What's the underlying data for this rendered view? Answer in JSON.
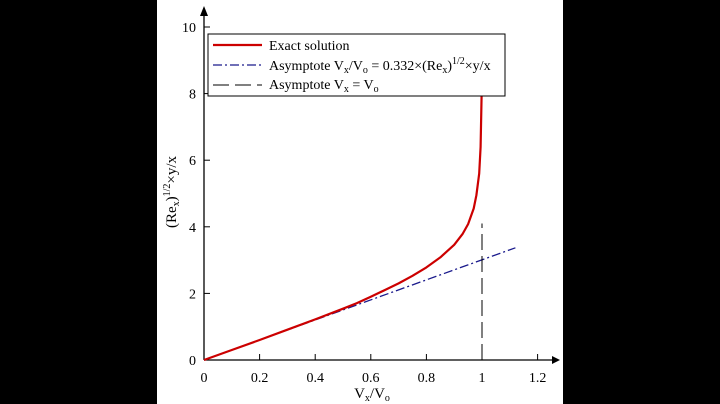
{
  "chart_data": {
    "type": "line",
    "xlabel": "Vₓ/Vₒ",
    "xlabel_parts": {
      "main": "V",
      "sub1": "x",
      "mid": "/V",
      "sub2": "o"
    },
    "ylabel": "(Reₓ)¹ᐟ²×y/x",
    "ylabel_parts": {
      "open": "(Re",
      "sub": "x",
      "close": ")",
      "sup": "1/2",
      "rest": "×y/x"
    },
    "xlim": [
      0,
      1.25
    ],
    "ylim": [
      0,
      10.5
    ],
    "x_ticks": [
      0,
      0.2,
      0.4,
      0.6,
      0.8,
      1,
      1.2
    ],
    "x_tick_labels": [
      "0",
      "0.2",
      "0.4",
      "0.6",
      "0.8",
      "1",
      "1.2"
    ],
    "y_ticks": [
      0,
      2,
      4,
      6,
      8,
      10
    ],
    "y_tick_labels": [
      "0",
      "2",
      "4",
      "6",
      "8",
      "10"
    ],
    "grid": false,
    "legend_position": "top-left",
    "legend": [
      {
        "label": "Exact solution",
        "style": "solid",
        "color": "#cc0000"
      },
      {
        "label": "Asymptote Vx/Vo = 0.332×(Rex)1/2×y/x",
        "style": "dashdot",
        "color": "#1a1a8c",
        "parts": {
          "a": "Asymptote V",
          "s1": "x",
          "b": "/V",
          "s2": "o",
          "c": " = 0.332×(Re",
          "s3": "x",
          "d": ")",
          "sup": "1/2",
          "e": "×y/x"
        }
      },
      {
        "label": "Asymptote Vx = Vo",
        "style": "longdash",
        "color": "#000000",
        "parts": {
          "a": "Asymptote V",
          "s1": "x",
          "b": " = V",
          "s2": "o"
        }
      }
    ],
    "series": [
      {
        "name": "Exact solution",
        "x": [
          0,
          0.1,
          0.2,
          0.3,
          0.4,
          0.5,
          0.55,
          0.6,
          0.65,
          0.7,
          0.75,
          0.8,
          0.85,
          0.9,
          0.93,
          0.95,
          0.97,
          0.98,
          0.99,
          0.995,
          0.999
        ],
        "y": [
          0,
          0.3,
          0.6,
          0.91,
          1.22,
          1.54,
          1.71,
          1.9,
          2.1,
          2.3,
          2.53,
          2.78,
          3.08,
          3.46,
          3.78,
          4.08,
          4.55,
          4.95,
          5.6,
          6.4,
          8.1
        ]
      },
      {
        "name": "Asymptote Vx/Vo = 0.332×(Rex)1/2×y/x",
        "x": [
          0,
          1.12
        ],
        "y": [
          0,
          3.37
        ]
      },
      {
        "name": "Asymptote Vx = Vo",
        "x": [
          1,
          1
        ],
        "y": [
          0,
          4.1
        ]
      }
    ]
  }
}
